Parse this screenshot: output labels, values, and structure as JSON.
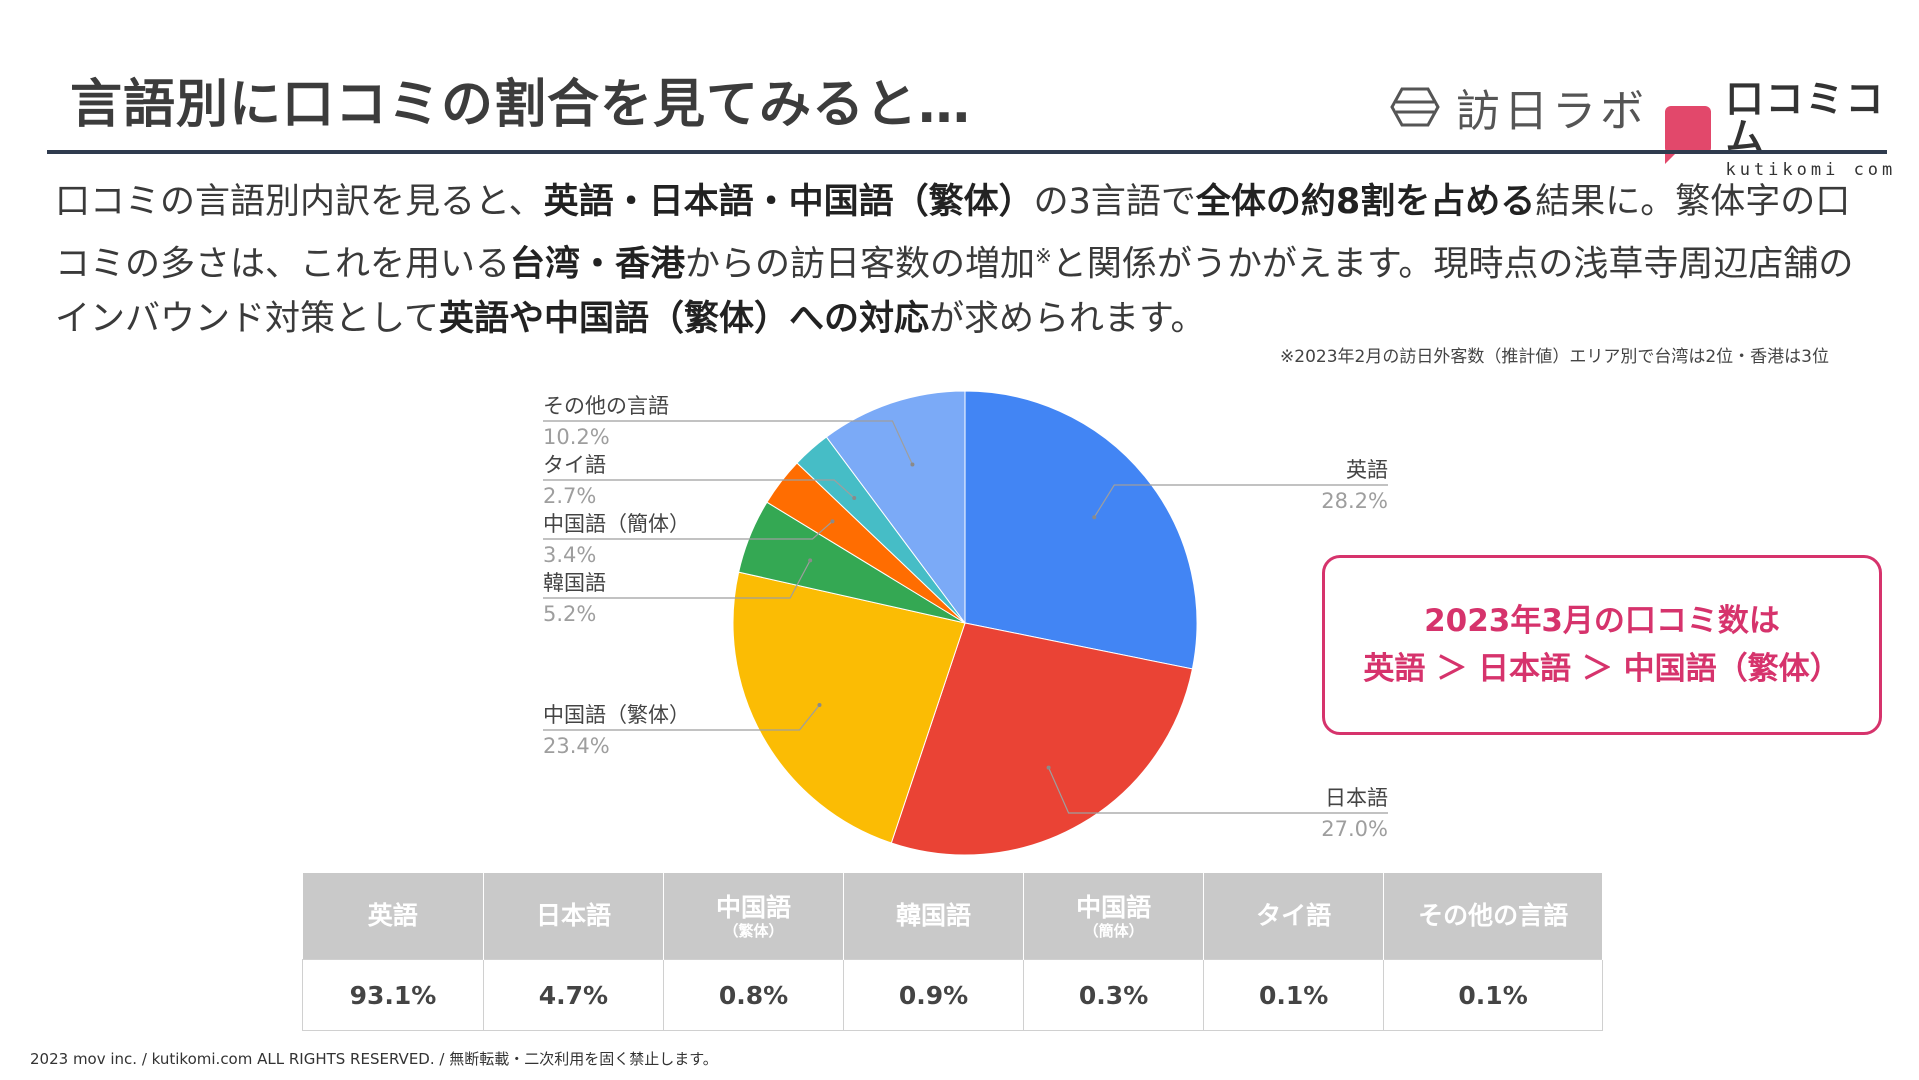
{
  "header": {
    "title": "言語別に口コミの割合を見てみると…",
    "logo_labo_text": "訪日ラボ",
    "logo_kuti_text": "口コミコム",
    "logo_kuti_sub": "kutikomi com"
  },
  "body": {
    "p1": "口コミの言語別内訳を見ると、",
    "b1": "英語・日本語・中国語（繁体）",
    "p2": "の3言語で",
    "b2": "全体の約8割を占める",
    "p3": "結果に。繁体字の口コミの多さは、これを用いる",
    "b3": "台湾・香港",
    "p4": "からの訪日客数の増加",
    "sup": "※",
    "p5": "と関係がうかがえます。現時点の浅草寺周辺店舗のインバウンド対策として",
    "b4": "英語や中国語（繁体）への対応",
    "p6": "が求められます。",
    "note": "※2023年2月の訪日外客数（推計値）エリア別で台湾は2位・香港は3位"
  },
  "callout": {
    "line1": "2023年3月の口コミ数は",
    "line2": "英語 ＞ 日本語 ＞ 中国語（繁体）"
  },
  "chart_data": {
    "type": "pie",
    "slices": [
      {
        "label": "英語",
        "value": 28.2,
        "display": "28.2%",
        "color": "#4285f4"
      },
      {
        "label": "日本語",
        "value": 27.0,
        "display": "27.0%",
        "color": "#ea4335"
      },
      {
        "label": "中国語（繁体）",
        "value": 23.4,
        "display": "23.4%",
        "color": "#fbbc04"
      },
      {
        "label": "韓国語",
        "value": 5.2,
        "display": "5.2%",
        "color": "#34a853"
      },
      {
        "label": "中国語（簡体）",
        "value": 3.4,
        "display": "3.4%",
        "color": "#ff6d01"
      },
      {
        "label": "タイ語",
        "value": 2.7,
        "display": "2.7%",
        "color": "#46bdc6"
      },
      {
        "label": "その他の言語",
        "value": 10.2,
        "display": "10.2%",
        "color": "#7baaf7"
      }
    ]
  },
  "table": {
    "headers": [
      {
        "main": "英語",
        "sub": ""
      },
      {
        "main": "日本語",
        "sub": ""
      },
      {
        "main": "中国語",
        "sub": "（繁体）"
      },
      {
        "main": "韓国語",
        "sub": ""
      },
      {
        "main": "中国語",
        "sub": "（簡体）"
      },
      {
        "main": "タイ語",
        "sub": ""
      },
      {
        "main": "その他の言語",
        "sub": ""
      }
    ],
    "values": [
      "93.1%",
      "4.7%",
      "0.8%",
      "0.9%",
      "0.3%",
      "0.1%",
      "0.1%"
    ]
  },
  "footer": "2023 mov inc. / kutikomi.com ALL RIGHTS RESERVED. / 無断転載・二次利用を固く禁止します。"
}
